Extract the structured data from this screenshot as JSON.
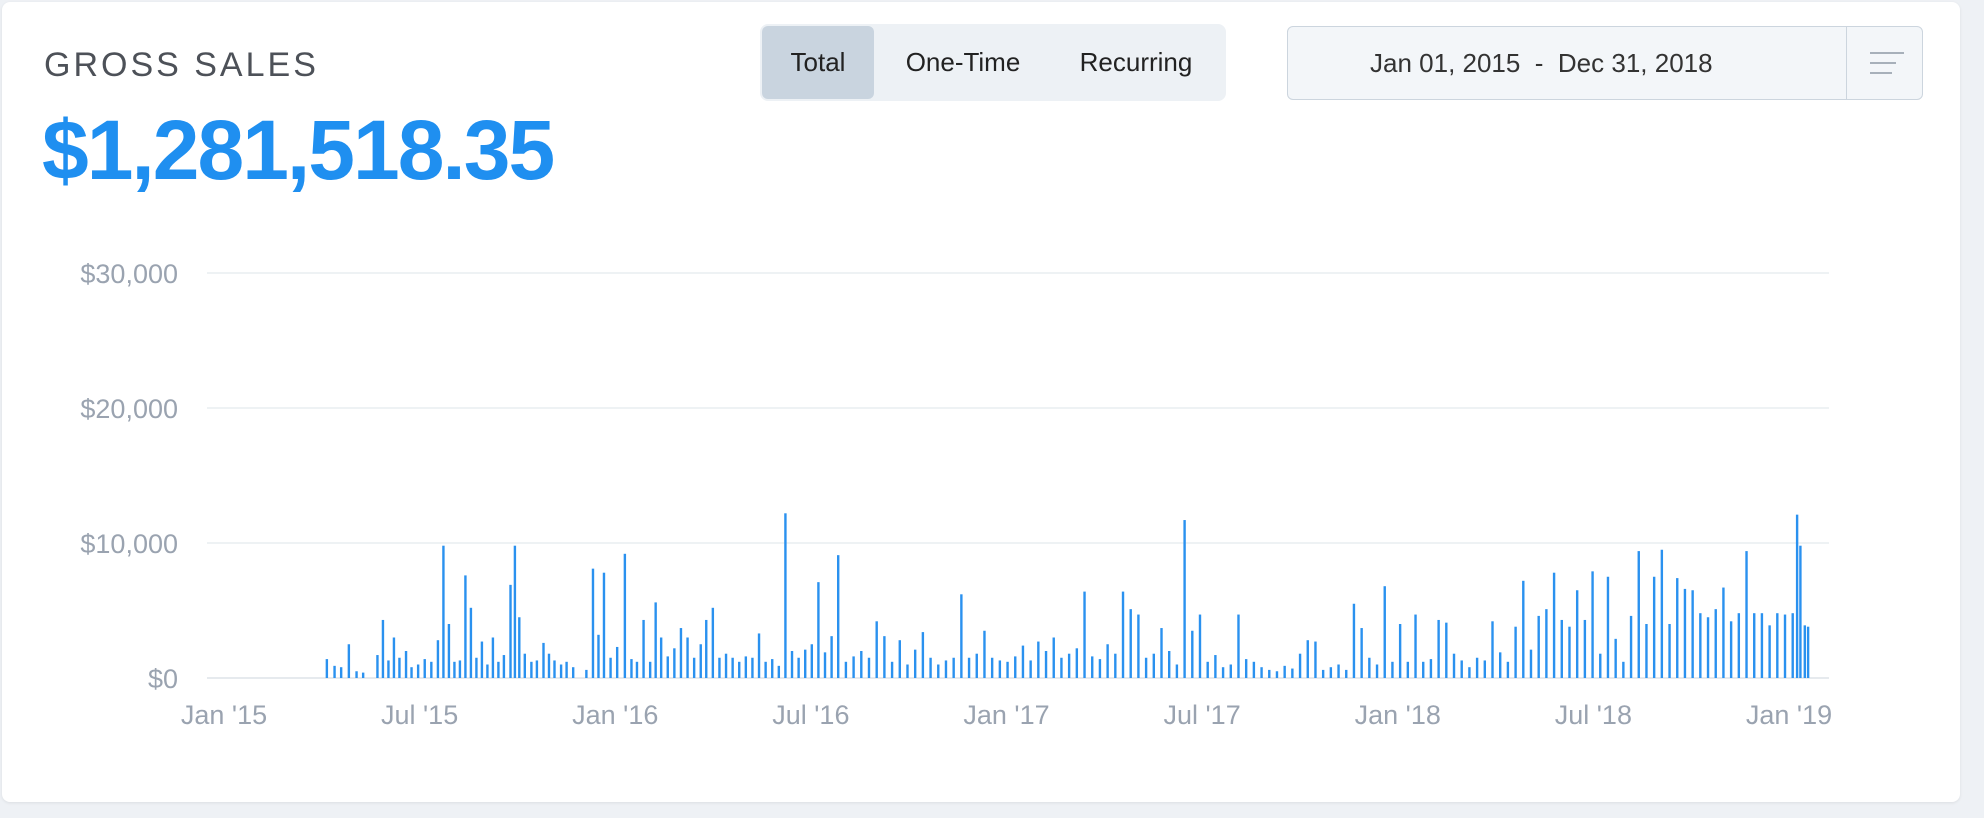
{
  "title": "GROSS SALES",
  "amount": "$1,281,518.35",
  "filters": {
    "total": "Total",
    "one_time": "One-Time",
    "recurring": "Recurring",
    "active": "Total"
  },
  "date_range": {
    "start": "Jan 01, 2015",
    "separator": "-",
    "end": "Dec 31, 2018",
    "display": "Jan 01, 2015  -  Dec 31, 2018"
  },
  "colors": {
    "accent": "#1f8ff0",
    "bar": "#2a91ef",
    "grid": "#e9edf1",
    "tick": "#9aa3b0"
  },
  "icons": {
    "menu": "hamburger-menu-icon"
  },
  "chart_data": {
    "type": "bar",
    "title": "",
    "xlabel": "",
    "ylabel": "",
    "ylim": [
      0,
      30000
    ],
    "xlim": [
      "2015-01-01",
      "2019-01-15"
    ],
    "y_ticks": [
      "$0",
      "$10,000",
      "$20,000",
      "$30,000"
    ],
    "x_ticks": [
      "Jan '15",
      "Jul '15",
      "Jan '16",
      "Jul '16",
      "Jan '17",
      "Jul '17",
      "Jan '18",
      "Jul '18",
      "Jan '19"
    ],
    "grid": true,
    "series": [
      {
        "color": "#2a91ef",
        "x": [
          "2015-04-20",
          "2015-04-27",
          "2015-05-03",
          "2015-05-10",
          "2015-05-17",
          "2015-05-23",
          "2015-06-05",
          "2015-06-10",
          "2015-06-15",
          "2015-06-20",
          "2015-06-25",
          "2015-07-01",
          "2015-07-06",
          "2015-07-12",
          "2015-07-18",
          "2015-07-24",
          "2015-07-30",
          "2015-08-04",
          "2015-08-09",
          "2015-08-14",
          "2015-08-19",
          "2015-08-24",
          "2015-08-29",
          "2015-09-03",
          "2015-09-08",
          "2015-09-13",
          "2015-09-18",
          "2015-09-23",
          "2015-09-28",
          "2015-10-04",
          "2015-10-08",
          "2015-10-12",
          "2015-10-17",
          "2015-10-23",
          "2015-10-28",
          "2015-11-03",
          "2015-11-08",
          "2015-11-13",
          "2015-11-19",
          "2015-11-24",
          "2015-11-30",
          "2015-12-12",
          "2015-12-18",
          "2015-12-23",
          "2015-12-28",
          "2016-01-03",
          "2016-01-09",
          "2016-01-16",
          "2016-01-22",
          "2016-01-27",
          "2016-02-02",
          "2016-02-08",
          "2016-02-13",
          "2016-02-18",
          "2016-02-24",
          "2016-03-01",
          "2016-03-07",
          "2016-03-13",
          "2016-03-19",
          "2016-03-25",
          "2016-03-30",
          "2016-04-05",
          "2016-04-11",
          "2016-04-17",
          "2016-04-23",
          "2016-04-29",
          "2016-05-05",
          "2016-05-11",
          "2016-05-17",
          "2016-05-23",
          "2016-05-29",
          "2016-06-04",
          "2016-06-10",
          "2016-06-16",
          "2016-06-22",
          "2016-06-28",
          "2016-07-04",
          "2016-07-10",
          "2016-07-16",
          "2016-07-22",
          "2016-07-28",
          "2016-08-04",
          "2016-08-11",
          "2016-08-18",
          "2016-08-25",
          "2016-09-01",
          "2016-09-08",
          "2016-09-15",
          "2016-09-22",
          "2016-09-29",
          "2016-10-06",
          "2016-10-13",
          "2016-10-20",
          "2016-10-27",
          "2016-11-03",
          "2016-11-10",
          "2016-11-17",
          "2016-11-24",
          "2016-12-01",
          "2016-12-08",
          "2016-12-15",
          "2016-12-22",
          "2016-12-29",
          "2017-01-05",
          "2017-01-12",
          "2017-01-19",
          "2017-01-26",
          "2017-02-02",
          "2017-02-09",
          "2017-02-16",
          "2017-02-23",
          "2017-03-02",
          "2017-03-09",
          "2017-03-16",
          "2017-03-23",
          "2017-03-30",
          "2017-04-06",
          "2017-04-13",
          "2017-04-20",
          "2017-04-27",
          "2017-05-04",
          "2017-05-11",
          "2017-05-18",
          "2017-05-25",
          "2017-06-01",
          "2017-06-08",
          "2017-06-15",
          "2017-06-22",
          "2017-06-29",
          "2017-07-06",
          "2017-07-13",
          "2017-07-20",
          "2017-07-27",
          "2017-08-03",
          "2017-08-10",
          "2017-08-17",
          "2017-08-24",
          "2017-08-31",
          "2017-09-07",
          "2017-09-14",
          "2017-09-21",
          "2017-09-28",
          "2017-10-05",
          "2017-10-12",
          "2017-10-19",
          "2017-10-26",
          "2017-11-02",
          "2017-11-09",
          "2017-11-16",
          "2017-11-23",
          "2017-11-30",
          "2017-12-07",
          "2017-12-14",
          "2017-12-21",
          "2017-12-28",
          "2018-01-04",
          "2018-01-11",
          "2018-01-18",
          "2018-01-25",
          "2018-02-01",
          "2018-02-08",
          "2018-02-15",
          "2018-02-22",
          "2018-03-01",
          "2018-03-08",
          "2018-03-15",
          "2018-03-22",
          "2018-03-29",
          "2018-04-05",
          "2018-04-12",
          "2018-04-19",
          "2018-04-26",
          "2018-05-03",
          "2018-05-10",
          "2018-05-17",
          "2018-05-24",
          "2018-05-31",
          "2018-06-07",
          "2018-06-14",
          "2018-06-21",
          "2018-06-28",
          "2018-07-05",
          "2018-07-12",
          "2018-07-19",
          "2018-07-26",
          "2018-08-02",
          "2018-08-09",
          "2018-08-16",
          "2018-08-23",
          "2018-08-30",
          "2018-09-06",
          "2018-09-13",
          "2018-09-20",
          "2018-09-27",
          "2018-10-04",
          "2018-10-11",
          "2018-10-18",
          "2018-10-25",
          "2018-11-01",
          "2018-11-08",
          "2018-11-15",
          "2018-11-22",
          "2018-11-29",
          "2018-12-06",
          "2018-12-13",
          "2018-12-17",
          "2018-12-20",
          "2018-12-24",
          "2018-12-27"
        ],
        "values": [
          1400,
          900,
          800,
          2500,
          500,
          400,
          1700,
          4300,
          1300,
          3000,
          1500,
          2000,
          800,
          1000,
          1400,
          1200,
          2800,
          9800,
          4000,
          1200,
          1300,
          7600,
          5200,
          1500,
          2700,
          1000,
          3000,
          1200,
          1700,
          6900,
          9800,
          4500,
          1800,
          1200,
          1300,
          2600,
          1800,
          1300,
          1000,
          1200,
          800,
          600,
          8100,
          3200,
          7800,
          1500,
          2300,
          9200,
          1400,
          1200,
          4300,
          1200,
          5600,
          3000,
          1600,
          2200,
          3700,
          3000,
          1500,
          2500,
          4300,
          5200,
          1500,
          1800,
          1500,
          1200,
          1600,
          1500,
          3300,
          1200,
          1400,
          900,
          12200,
          2000,
          1500,
          2100,
          2500,
          7100,
          1900,
          3100,
          9100,
          1200,
          1600,
          2000,
          1500,
          4200,
          3100,
          1200,
          2800,
          1000,
          2100,
          3400,
          1500,
          1000,
          1300,
          1500,
          6200,
          1500,
          1800,
          3500,
          1500,
          1300,
          1200,
          1600,
          2400,
          1300,
          2700,
          2000,
          3000,
          1500,
          1800,
          2200,
          6400,
          1600,
          1400,
          2500,
          1800,
          6400,
          5100,
          4700,
          1500,
          1800,
          3700,
          2000,
          1000,
          11700,
          3500,
          4700,
          1200,
          1700,
          800,
          1000,
          4700,
          1400,
          1200,
          800,
          600,
          500,
          900,
          700,
          1800,
          2800,
          2700,
          600,
          800,
          1000,
          600,
          5500,
          3700,
          1500,
          1000,
          6800,
          1200,
          4000,
          1200,
          4700,
          1200,
          1400,
          4300,
          4100,
          1800,
          1300,
          800,
          1500,
          1300,
          4200,
          1900,
          1200,
          3800,
          7200,
          2100,
          4600,
          5100,
          7800,
          4300,
          3800,
          6500,
          4300,
          7900,
          1800,
          7500,
          2900,
          1200,
          4600,
          9400,
          4000,
          7500,
          9500,
          4000,
          7400,
          6600,
          6500,
          4800,
          4500,
          5100,
          6700,
          4200,
          4800,
          9400,
          4800,
          4800,
          3900,
          4800,
          4700,
          4800,
          12100,
          9800,
          3900,
          3800
        ]
      }
    ]
  }
}
